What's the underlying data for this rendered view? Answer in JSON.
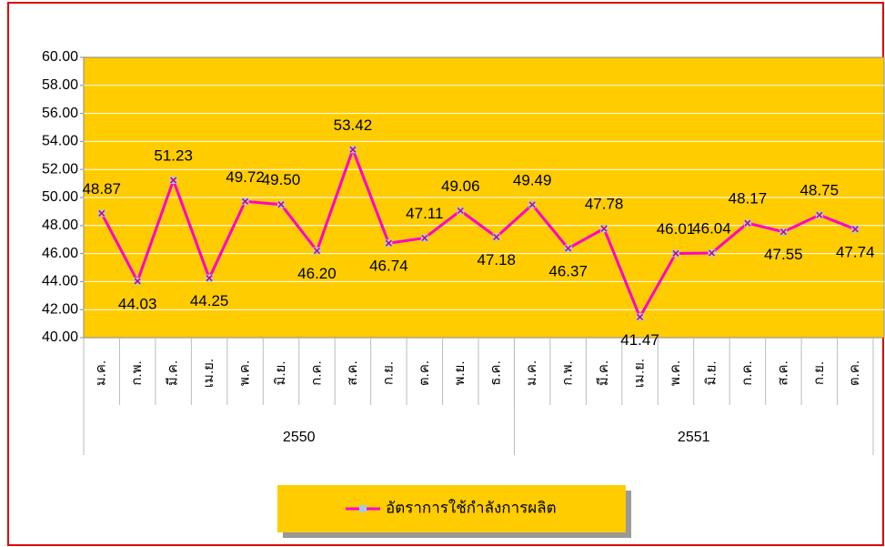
{
  "chart_data": {
    "type": "line",
    "category_groups": [
      {
        "name": "2550",
        "categories": [
          "ม.ค.",
          "ก.พ.",
          "มี.ค.",
          "เม.ย.",
          "พ.ค.",
          "มิ.ย.",
          "ก.ค.",
          "ส.ค.",
          "ก.ย.",
          "ต.ค.",
          "พ.ย.",
          "ธ.ค."
        ]
      },
      {
        "name": "2551",
        "categories": [
          "ม.ค.",
          "ก.พ.",
          "มี.ค.",
          "เม.ย.",
          "พ.ค.",
          "มิ.ย.",
          "ก.ค.",
          "ส.ค.",
          "ก.ย.",
          "ต.ค."
        ]
      }
    ],
    "series": [
      {
        "name": "อัตราการใช้กำลังการผลิต",
        "color": "#ff00cc",
        "marker_color": "#a8c8e8",
        "values": [
          48.87,
          44.03,
          51.23,
          44.25,
          49.72,
          49.5,
          46.2,
          53.42,
          46.74,
          47.11,
          49.06,
          47.18,
          49.49,
          46.37,
          47.78,
          41.47,
          46.01,
          46.04,
          48.17,
          47.55,
          48.75,
          47.74
        ],
        "value_labels": [
          "48.87",
          "44.03",
          "51.23",
          "44.25",
          "49.72",
          "49.50",
          "46.20",
          "53.42",
          "46.74",
          "47.11",
          "49.06",
          "47.18",
          "49.49",
          "46.37",
          "47.78",
          "41.47",
          "46.01",
          "46.04",
          "48.17",
          "47.55",
          "48.75",
          "47.74"
        ]
      }
    ],
    "ylim": [
      40,
      60
    ],
    "yticks": [
      {
        "value": 40,
        "label": "40.00"
      },
      {
        "value": 42,
        "label": "42.00"
      },
      {
        "value": 44,
        "label": "44.00"
      },
      {
        "value": 46,
        "label": "46.00"
      },
      {
        "value": 48,
        "label": "48.00"
      },
      {
        "value": 50,
        "label": "50.00"
      },
      {
        "value": 52,
        "label": "52.00"
      },
      {
        "value": 54,
        "label": "54.00"
      },
      {
        "value": 56,
        "label": "56.00"
      },
      {
        "value": 58,
        "label": "58.00"
      },
      {
        "value": 60,
        "label": "60.00"
      }
    ],
    "grid": true,
    "plot_color": "#ffcc00",
    "legend": "bottom"
  }
}
